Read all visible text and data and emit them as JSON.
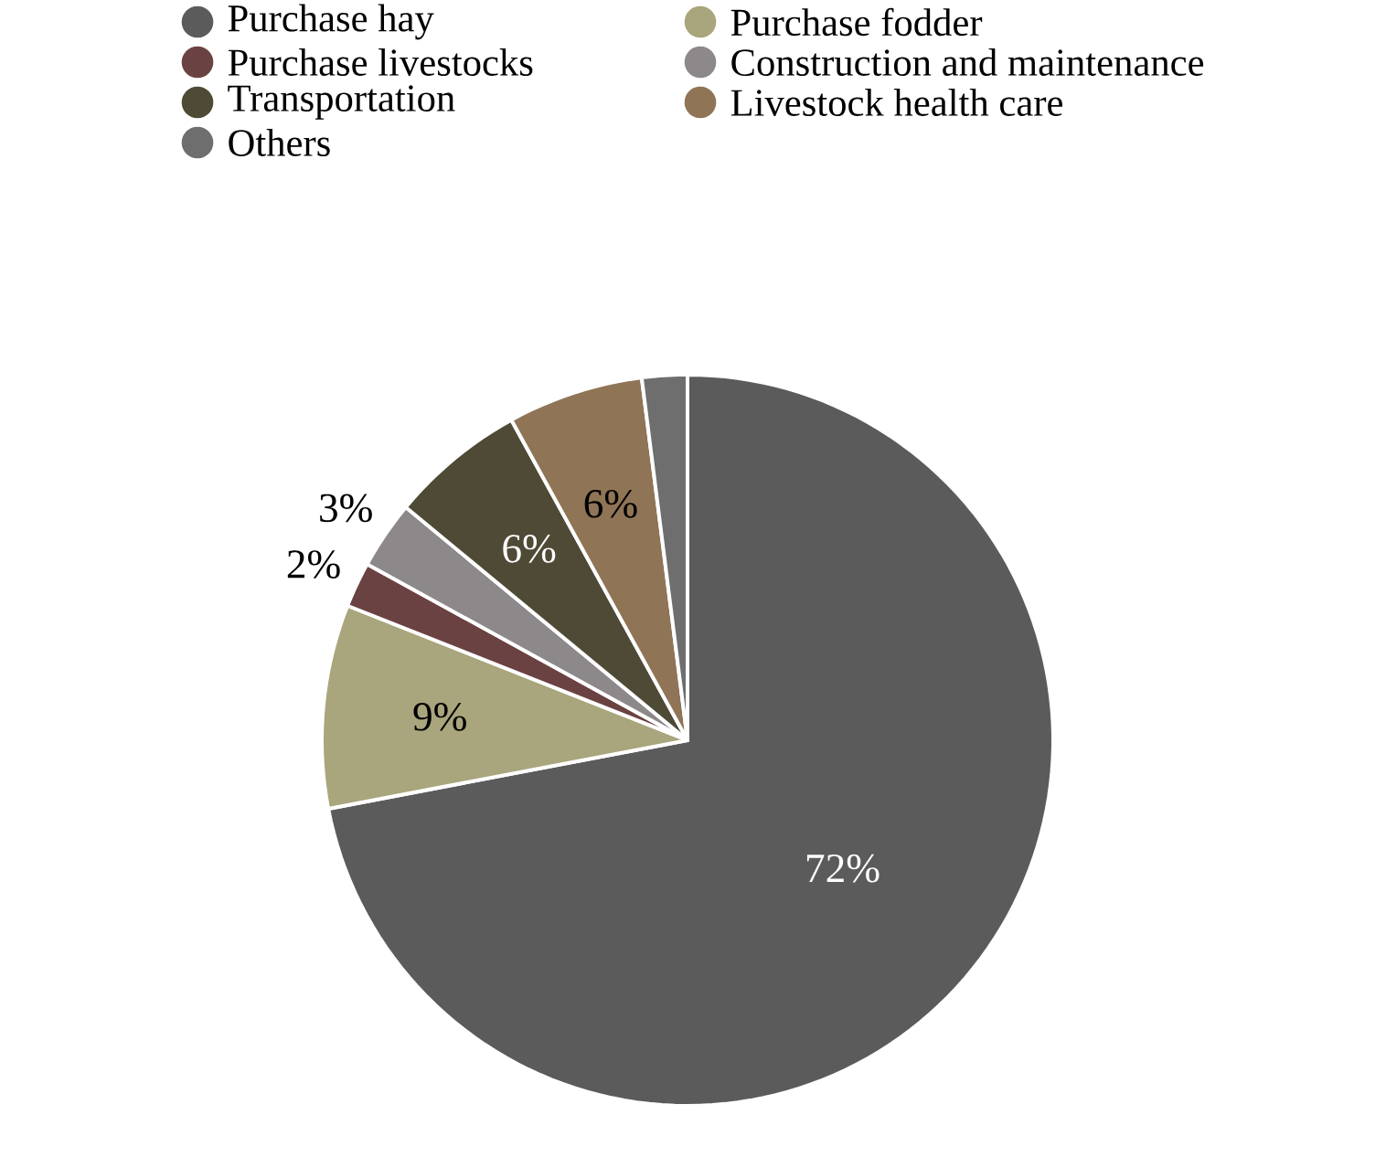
{
  "chart_data": {
    "type": "pie",
    "categories": [
      "Purchase hay",
      "Purchase fodder",
      "Purchase livestocks",
      "Construction and maintenance",
      "Transportation",
      "Livestock health care",
      "Others"
    ],
    "values": [
      72,
      9,
      2,
      3,
      6,
      6,
      2
    ],
    "value_labels": [
      "72%",
      "9%",
      "2%",
      "3%",
      "6%",
      "6%",
      null
    ],
    "colors": [
      "#5b5b5b",
      "#a9a57c",
      "#6b4242",
      "#8d8889",
      "#4f4a36",
      "#8f7456",
      "#6e6e6e"
    ],
    "legend": "top"
  }
}
